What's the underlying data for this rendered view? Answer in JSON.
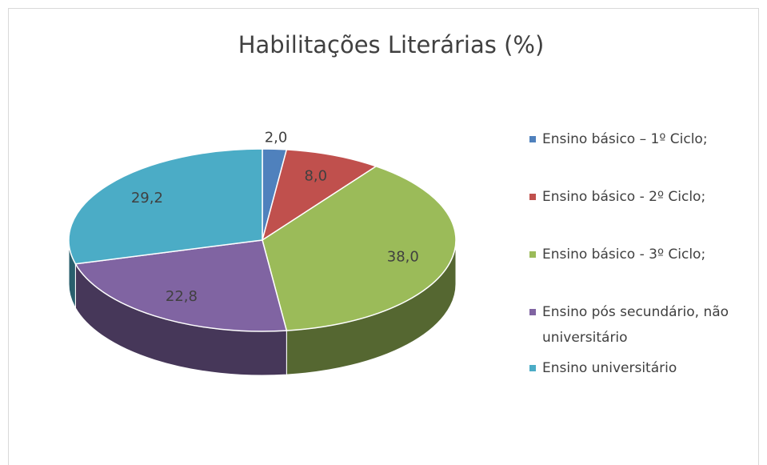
{
  "chart_data": {
    "type": "pie",
    "title": "Habilitações Literárias (%)",
    "categories": [
      "Ensino básico – 1º Ciclo;",
      "Ensino básico - 2º Ciclo;",
      "Ensino básico - 3º Ciclo;",
      "Ensino pós secundário, não universitário",
      "Ensino universitário"
    ],
    "values": [
      2.0,
      8.0,
      38.0,
      22.8,
      29.2
    ],
    "value_labels": [
      "2,0",
      "8,0",
      "38,0",
      "22,8",
      "29,2"
    ],
    "colors": [
      "#4f81bd",
      "#c0504d",
      "#9bbb59",
      "#8064a2",
      "#4bacc6"
    ],
    "legend": "right"
  }
}
